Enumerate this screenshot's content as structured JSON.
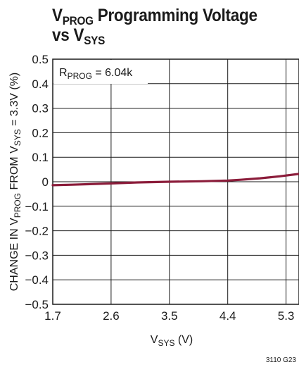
{
  "title": {
    "line1_main": "V",
    "line1_sub": "PROG",
    "line1_rest": " Programming Voltage",
    "line2_main": "vs V",
    "line2_sub": "SYS"
  },
  "figure_id": "3110 G23",
  "chart_data": {
    "type": "line",
    "title": "VPROG Programming Voltage vs VSYS",
    "xlabel": "VSYS (V)",
    "ylabel": "CHANGE IN VPROG FROM VSYS = 3.3V (%)",
    "xlim": [
      1.7,
      5.5
    ],
    "ylim": [
      -0.5,
      0.5
    ],
    "xticks": [
      "1.7",
      "2.6",
      "3.5",
      "4.4",
      "5.3"
    ],
    "yticks": [
      "0.5",
      "0.4",
      "0.3",
      "0.2",
      "0.1",
      "0",
      "−0.1",
      "−0.2",
      "−0.3",
      "−0.4",
      "−0.5"
    ],
    "grid": true,
    "annotation": "RPROG = 6.04k",
    "line_color": "#8b1c3a",
    "series": [
      {
        "x": [
          1.7,
          2.0,
          2.6,
          3.0,
          3.5,
          4.0,
          4.4,
          4.6,
          4.9,
          5.2,
          5.5
        ],
        "y": [
          -0.014,
          -0.012,
          -0.007,
          -0.003,
          0.0,
          0.002,
          0.005,
          0.008,
          0.014,
          0.022,
          0.032
        ]
      }
    ]
  }
}
